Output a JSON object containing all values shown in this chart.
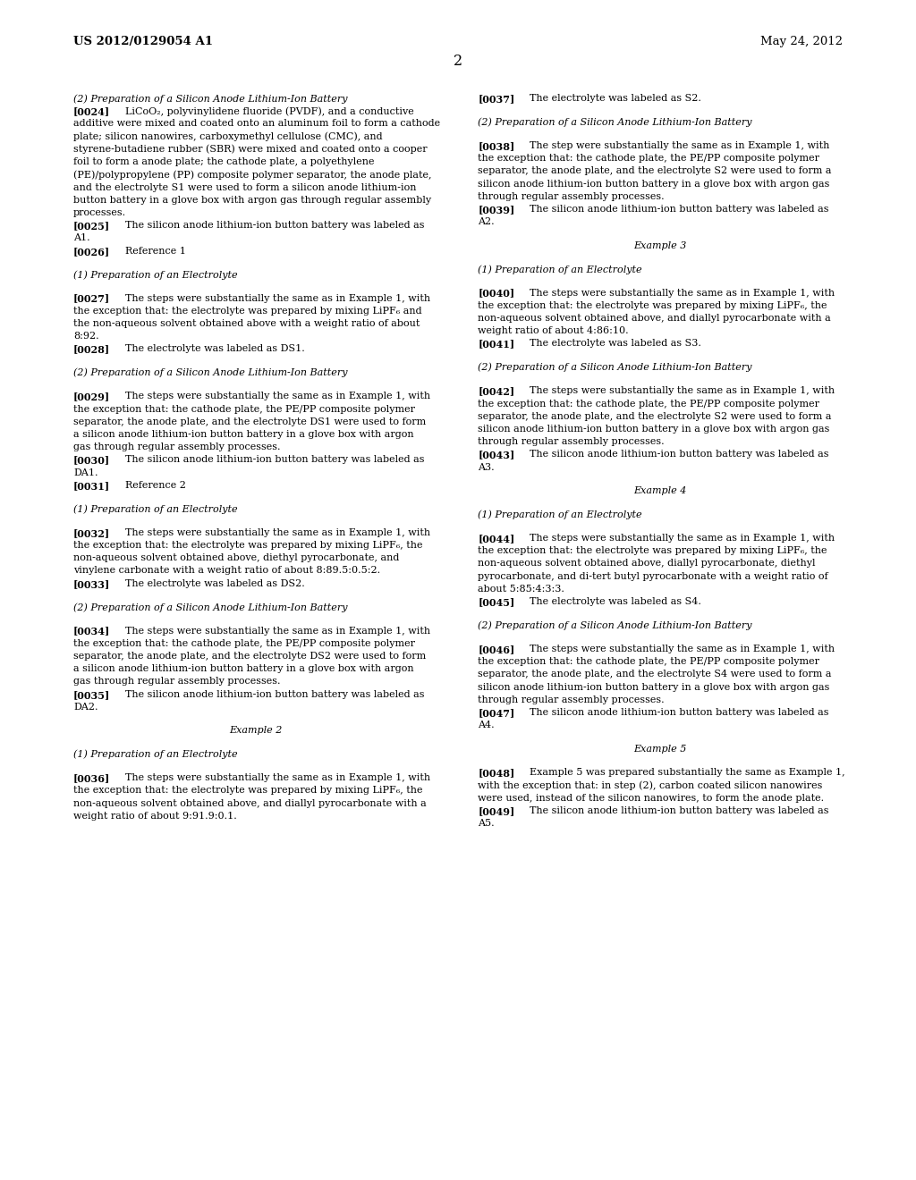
{
  "background_color": "#ffffff",
  "header_left": "US 2012/0129054 A1",
  "header_right": "May 24, 2012",
  "page_number": "2",
  "left_column": [
    {
      "type": "italic",
      "text": "(2) Preparation of a Silicon Anode Lithium-Ion Battery"
    },
    {
      "type": "para",
      "tag": "[0024]",
      "text": "LiCoO₂, polyvinylidene fluoride (PVDF), and a conductive additive were mixed and coated onto an aluminum foil to form a cathode plate; silicon nanowires, carboxymethyl cellulose (CMC), and styrene-butadiene rubber (SBR) were mixed and coated onto a cooper foil to form a anode plate; the cathode plate, a polyethylene (PE)/polypropylene (PP) composite polymer separator, the anode plate, and the electrolyte S1 were used to form a silicon anode lithium-ion button battery in a glove box with argon gas through regular assembly processes."
    },
    {
      "type": "para",
      "tag": "[0025]",
      "text": "The silicon anode lithium-ion button battery was labeled as A1."
    },
    {
      "type": "para",
      "tag": "[0026]",
      "text": "Reference 1"
    },
    {
      "type": "blank"
    },
    {
      "type": "italic",
      "text": "(1) Preparation of an Electrolyte"
    },
    {
      "type": "blank"
    },
    {
      "type": "para",
      "tag": "[0027]",
      "text": "The steps were substantially the same as in Example 1, with the exception that: the electrolyte was prepared by mixing LiPF₆ and the non-aqueous solvent obtained above with a weight ratio of about 8:92."
    },
    {
      "type": "para",
      "tag": "[0028]",
      "text": "The electrolyte was labeled as DS1."
    },
    {
      "type": "blank"
    },
    {
      "type": "italic",
      "text": "(2) Preparation of a Silicon Anode Lithium-Ion Battery"
    },
    {
      "type": "blank"
    },
    {
      "type": "para",
      "tag": "[0029]",
      "text": "The steps were substantially the same as in Example 1, with the exception that: the cathode plate, the PE/PP composite polymer separator, the anode plate, and the electrolyte DS1 were used to form a silicon anode lithium-ion button battery in a glove box with argon gas through regular assembly processes."
    },
    {
      "type": "para",
      "tag": "[0030]",
      "text": "The silicon anode lithium-ion button battery was labeled as DA1."
    },
    {
      "type": "para",
      "tag": "[0031]",
      "text": "Reference 2"
    },
    {
      "type": "blank"
    },
    {
      "type": "italic",
      "text": "(1) Preparation of an Electrolyte"
    },
    {
      "type": "blank"
    },
    {
      "type": "para",
      "tag": "[0032]",
      "text": "The steps were substantially the same as in Example 1, with the exception that: the electrolyte was prepared by mixing LiPF₆, the non-aqueous solvent obtained above, diethyl pyrocarbonate, and vinylene carbonate with a weight ratio of about 8:89.5:0.5:2."
    },
    {
      "type": "para",
      "tag": "[0033]",
      "text": "The electrolyte was labeled as DS2."
    },
    {
      "type": "blank"
    },
    {
      "type": "italic",
      "text": "(2) Preparation of a Silicon Anode Lithium-Ion Battery"
    },
    {
      "type": "blank"
    },
    {
      "type": "para",
      "tag": "[0034]",
      "text": "The steps were substantially the same as in Example 1, with the exception that: the cathode plate, the PE/PP composite polymer separator, the anode plate, and the electrolyte DS2 were used to form a silicon anode lithium-ion button battery in a glove box with argon gas through regular assembly processes."
    },
    {
      "type": "para",
      "tag": "[0035]",
      "text": "The silicon anode lithium-ion button battery was labeled as DA2."
    },
    {
      "type": "blank"
    },
    {
      "type": "center",
      "text": "Example 2"
    },
    {
      "type": "blank"
    },
    {
      "type": "italic",
      "text": "(1) Preparation of an Electrolyte"
    },
    {
      "type": "blank"
    },
    {
      "type": "para",
      "tag": "[0036]",
      "text": "The steps were substantially the same as in Example 1, with the exception that: the electrolyte was prepared by mixing LiPF₆, the non-aqueous solvent obtained above, and diallyl pyrocarbonate with a weight ratio of about 9:91.9:0.1."
    }
  ],
  "right_column": [
    {
      "type": "para",
      "tag": "[0037]",
      "text": "The electrolyte was labeled as S2."
    },
    {
      "type": "blank"
    },
    {
      "type": "italic",
      "text": "(2) Preparation of a Silicon Anode Lithium-Ion Battery"
    },
    {
      "type": "blank"
    },
    {
      "type": "para",
      "tag": "[0038]",
      "text": "The step were substantially the same as in Example 1, with the exception that: the cathode plate, the PE/PP composite polymer separator, the anode plate, and the electrolyte S2 were used to form a silicon anode lithium-ion button battery in a glove box with argon gas through regular assembly processes."
    },
    {
      "type": "para",
      "tag": "[0039]",
      "text": "The silicon anode lithium-ion button battery was labeled as A2."
    },
    {
      "type": "blank"
    },
    {
      "type": "center",
      "text": "Example 3"
    },
    {
      "type": "blank"
    },
    {
      "type": "italic",
      "text": "(1) Preparation of an Electrolyte"
    },
    {
      "type": "blank"
    },
    {
      "type": "para",
      "tag": "[0040]",
      "text": "The steps were substantially the same as in Example 1, with the exception that: the electrolyte was prepared by mixing LiPF₆, the non-aqueous solvent obtained above, and diallyl pyrocarbonate with a weight ratio of about 4:86:10."
    },
    {
      "type": "para",
      "tag": "[0041]",
      "text": "The electrolyte was labeled as S3."
    },
    {
      "type": "blank"
    },
    {
      "type": "italic",
      "text": "(2) Preparation of a Silicon Anode Lithium-Ion Battery"
    },
    {
      "type": "blank"
    },
    {
      "type": "para",
      "tag": "[0042]",
      "text": "The steps were substantially the same as in Example 1, with the exception that: the cathode plate, the PE/PP composite polymer separator, the anode plate, and the electrolyte S2 were used to form a silicon anode lithium-ion button battery in a glove box with argon gas through regular assembly processes."
    },
    {
      "type": "para",
      "tag": "[0043]",
      "text": "The silicon anode lithium-ion button battery was labeled as A3."
    },
    {
      "type": "blank"
    },
    {
      "type": "center",
      "text": "Example 4"
    },
    {
      "type": "blank"
    },
    {
      "type": "italic",
      "text": "(1) Preparation of an Electrolyte"
    },
    {
      "type": "blank"
    },
    {
      "type": "para",
      "tag": "[0044]",
      "text": "The steps were substantially the same as in Example 1, with the exception that: the electrolyte was prepared by mixing LiPF₆, the non-aqueous solvent obtained above, diallyl pyrocarbonate, diethyl pyrocarbonate, and di-tert butyl pyrocarbonate with a weight ratio of about 5:85:4:3:3."
    },
    {
      "type": "para",
      "tag": "[0045]",
      "text": "The electrolyte was labeled as S4."
    },
    {
      "type": "blank"
    },
    {
      "type": "italic",
      "text": "(2) Preparation of a Silicon Anode Lithium-Ion Battery"
    },
    {
      "type": "blank"
    },
    {
      "type": "para",
      "tag": "[0046]",
      "text": "The steps were substantially the same as in Example 1, with the exception that: the cathode plate, the PE/PP composite polymer separator, the anode plate, and the electrolyte S4 were used to form a silicon anode lithium-ion button battery in a glove box with argon gas through regular assembly processes."
    },
    {
      "type": "para",
      "tag": "[0047]",
      "text": "The silicon anode lithium-ion button battery was labeled as A4."
    },
    {
      "type": "blank"
    },
    {
      "type": "center",
      "text": "Example 5"
    },
    {
      "type": "blank"
    },
    {
      "type": "para",
      "tag": "[0048]",
      "text": "Example 5 was prepared substantially the same as Example 1, with the exception that: in step (2), carbon coated silicon nanowires were used, instead of the silicon nanowires, to form the anode plate."
    },
    {
      "type": "para",
      "tag": "[0049]",
      "text": "The silicon anode lithium-ion button battery was labeled as A5."
    }
  ]
}
